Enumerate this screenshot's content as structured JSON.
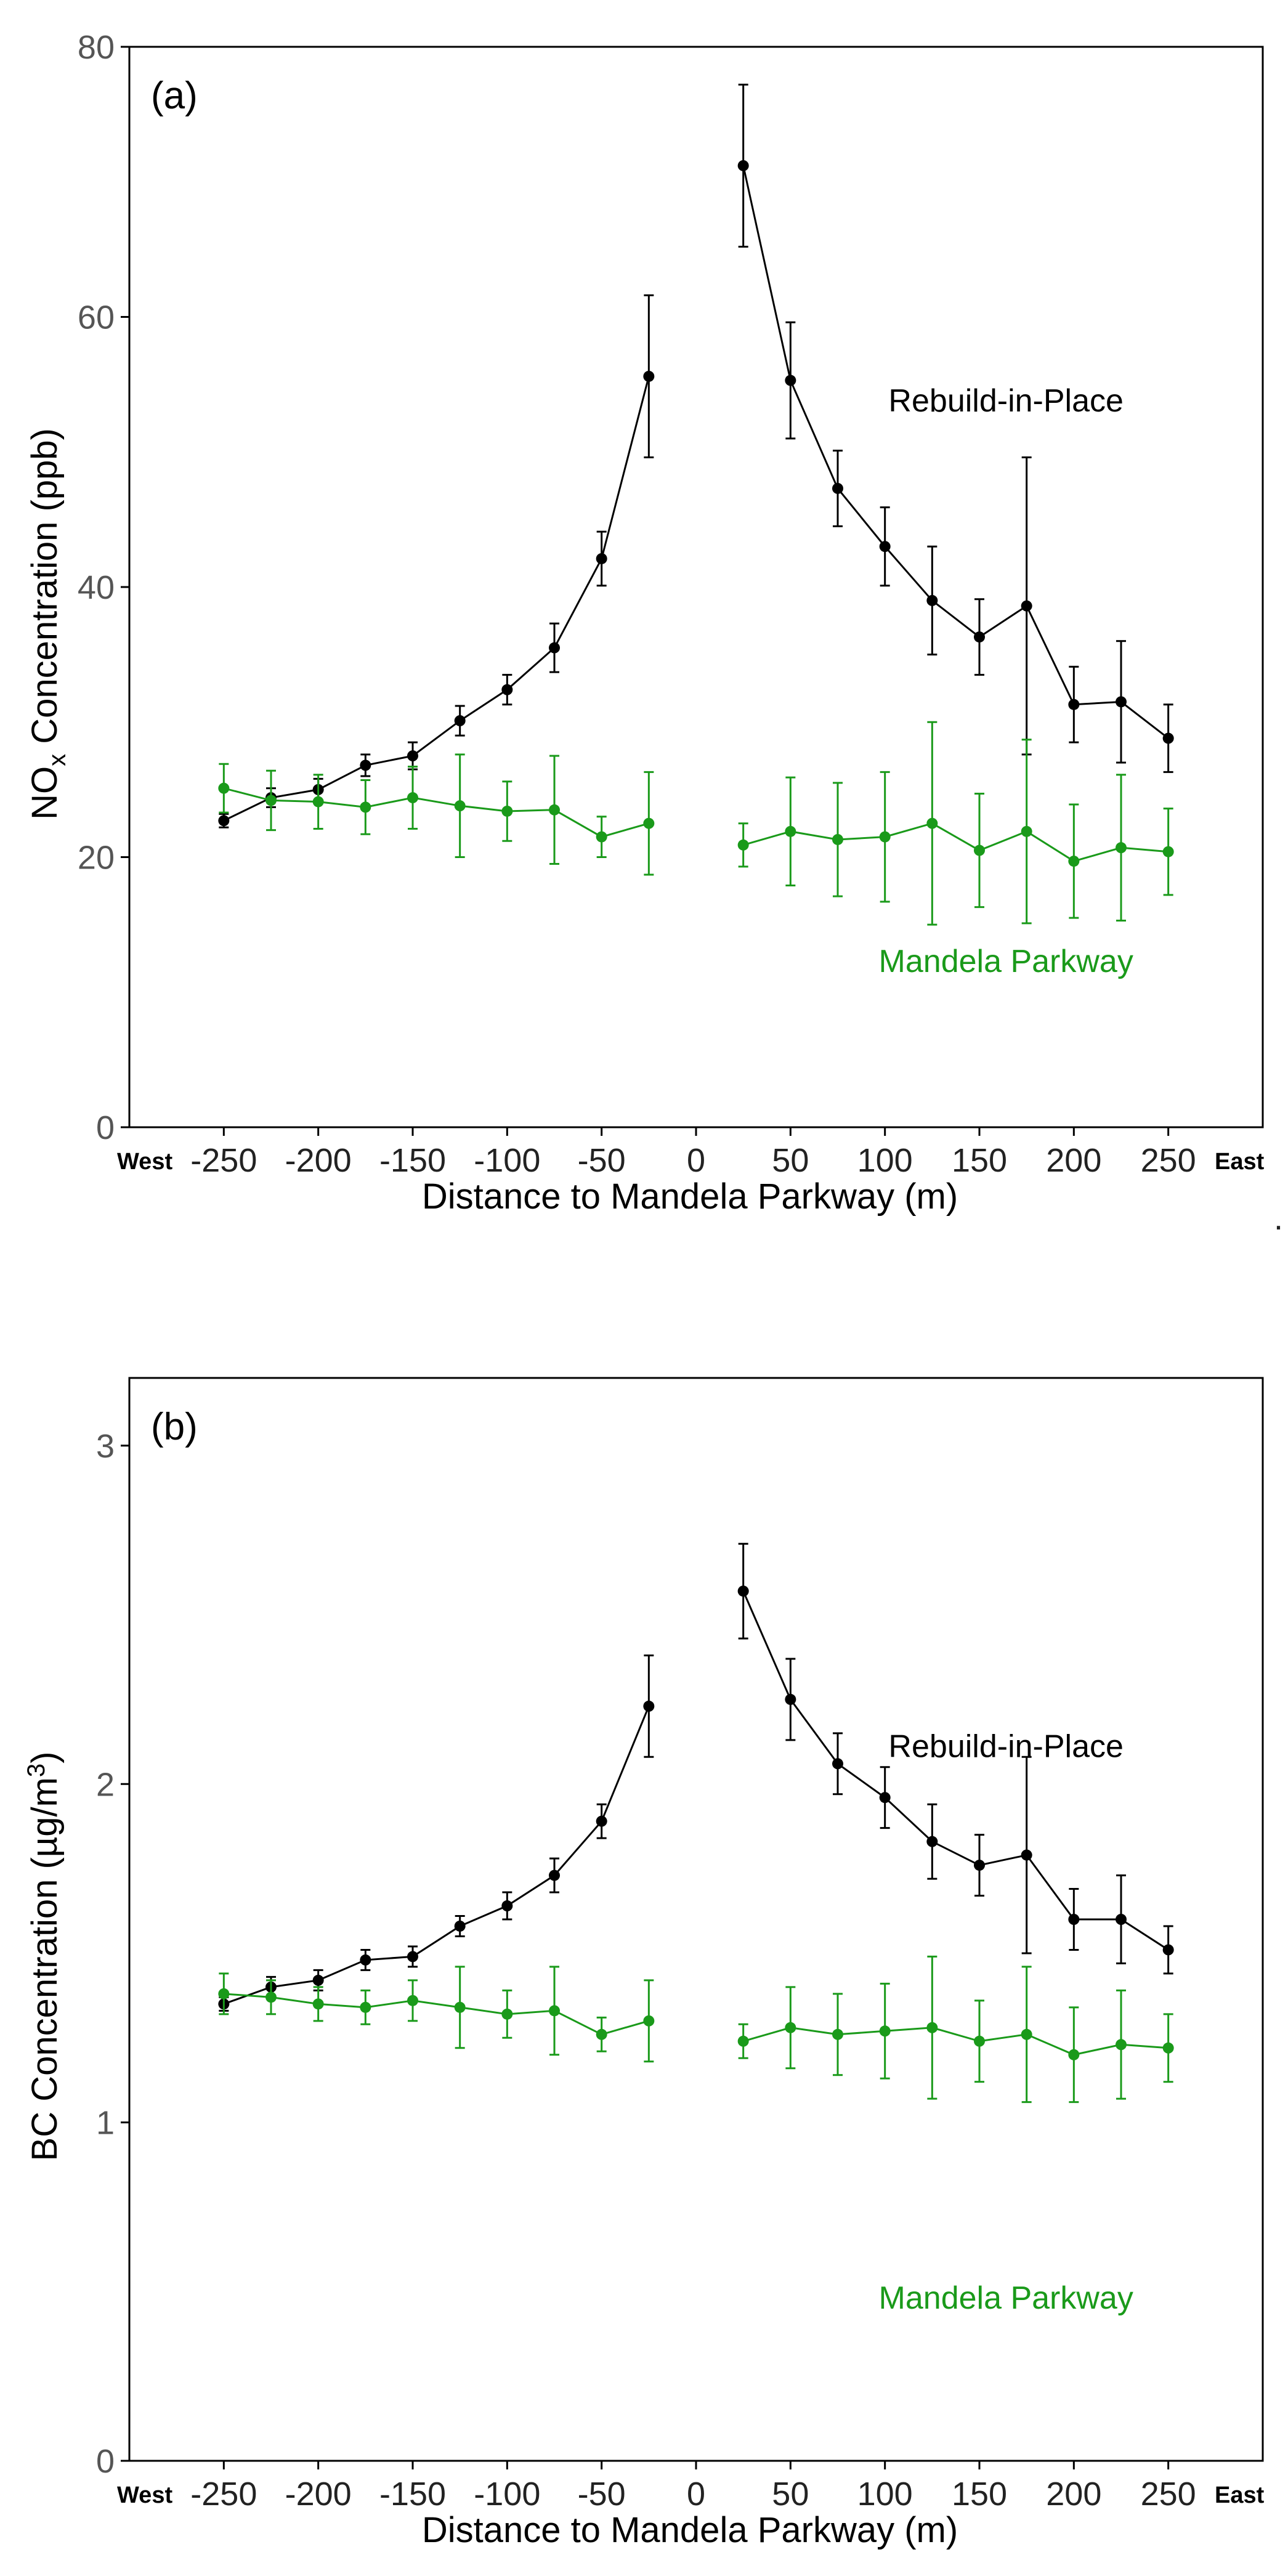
{
  "colors": {
    "rebuild": "#000000",
    "mandela": "#1a9a1a",
    "frame": "#000000"
  },
  "chart_data": [
    {
      "type": "line",
      "panel_label": "(a)",
      "xlabel": "Distance to Mandela Parkway (m)",
      "ylabel_main": "NO",
      "ylabel_sub": "x",
      "ylabel_rest": " Concentration (ppb)",
      "xlim": [
        -300,
        300
      ],
      "ylim": [
        0,
        80
      ],
      "xticks": [
        -250,
        -200,
        -150,
        -100,
        -50,
        0,
        50,
        100,
        150,
        200,
        250
      ],
      "xtick_labels": [
        "-250",
        "-200",
        "-150",
        "-100",
        "-50",
        "0",
        "50",
        "100",
        "150",
        "200",
        "250"
      ],
      "yticks": [
        0,
        20,
        40,
        60,
        80
      ],
      "ytick_labels": [
        "0",
        "20",
        "40",
        "60",
        "80"
      ],
      "west_label": "West",
      "east_label": "East",
      "series": [
        {
          "name": "Rebuild-in-Place",
          "color_key": "rebuild",
          "label_at": [
            -12,
            53
          ],
          "segments": [
            {
              "x": [
                -250,
                -225,
                -200,
                -175,
                -150,
                -125,
                -100,
                -75,
                -50,
                -25
              ],
              "y": [
                22.7,
                24.4,
                25.0,
                26.8,
                27.5,
                30.1,
                32.4,
                35.5,
                42.1,
                55.6
              ],
              "err": [
                0.5,
                0.7,
                0.8,
                0.8,
                1.0,
                1.1,
                1.1,
                1.8,
                2.0,
                6.0
              ]
            },
            {
              "x": [
                25,
                50,
                75,
                100,
                125,
                150,
                175,
                200,
                225,
                250
              ],
              "y": [
                71.2,
                55.3,
                47.3,
                43.0,
                39.0,
                36.3,
                38.6,
                31.3,
                31.5,
                28.8
              ],
              "err": [
                6.0,
                4.3,
                2.8,
                2.9,
                4.0,
                2.8,
                11.0,
                2.8,
                4.5,
                2.5
              ]
            }
          ]
        },
        {
          "name": "Mandela Parkway",
          "color_key": "mandela",
          "label_at": [
            -12,
            11.5
          ],
          "segments": [
            {
              "x": [
                -250,
                -225,
                -200,
                -175,
                -150,
                -125,
                -100,
                -75,
                -50,
                -25
              ],
              "y": [
                25.1,
                24.2,
                24.1,
                23.7,
                24.4,
                23.8,
                23.4,
                23.5,
                21.5,
                22.5
              ],
              "err": [
                1.8,
                2.2,
                2.0,
                2.0,
                2.3,
                3.8,
                2.2,
                4.0,
                1.5,
                3.8
              ]
            },
            {
              "x": [
                25,
                50,
                75,
                100,
                125,
                150,
                175,
                200,
                225,
                250
              ],
              "y": [
                20.9,
                21.9,
                21.3,
                21.5,
                22.5,
                20.5,
                21.9,
                19.7,
                20.7,
                20.4
              ],
              "err": [
                1.6,
                4.0,
                4.2,
                4.8,
                7.5,
                4.2,
                6.8,
                4.2,
                5.4,
                3.2
              ]
            }
          ]
        }
      ]
    },
    {
      "type": "line",
      "panel_label": "(b)",
      "xlabel": "Distance to Mandela Parkway (m)",
      "ylabel_main": "BC Concentration (µg/m",
      "ylabel_sup": "3",
      "ylabel_rest": ")",
      "xlim": [
        -300,
        300
      ],
      "ylim": [
        0,
        3.2
      ],
      "xticks": [
        -250,
        -200,
        -150,
        -100,
        -50,
        0,
        50,
        100,
        150,
        200,
        250
      ],
      "xtick_labels": [
        "-250",
        "-200",
        "-150",
        "-100",
        "-50",
        "0",
        "50",
        "100",
        "150",
        "200",
        "250"
      ],
      "yticks": [
        0,
        1,
        2,
        3
      ],
      "ytick_labels": [
        "0",
        "1",
        "2",
        "3"
      ],
      "west_label": "West",
      "east_label": "East",
      "series": [
        {
          "name": "Rebuild-in-Place",
          "color_key": "rebuild",
          "label_at": [
            -12,
            2.08
          ],
          "segments": [
            {
              "x": [
                -250,
                -225,
                -200,
                -175,
                -150,
                -125,
                -100,
                -75,
                -50,
                -25
              ],
              "y": [
                1.35,
                1.4,
                1.42,
                1.48,
                1.49,
                1.58,
                1.64,
                1.73,
                1.89,
                2.23
              ],
              "err": [
                0.02,
                0.03,
                0.03,
                0.03,
                0.03,
                0.03,
                0.04,
                0.05,
                0.05,
                0.15
              ]
            },
            {
              "x": [
                25,
                50,
                75,
                100,
                125,
                150,
                175,
                200,
                225,
                250
              ],
              "y": [
                2.57,
                2.25,
                2.06,
                1.96,
                1.83,
                1.76,
                1.79,
                1.6,
                1.6,
                1.51
              ],
              "err": [
                0.14,
                0.12,
                0.09,
                0.09,
                0.11,
                0.09,
                0.29,
                0.09,
                0.13,
                0.07
              ]
            }
          ]
        },
        {
          "name": "Mandela Parkway",
          "color_key": "mandela",
          "label_at": [
            -12,
            0.45
          ],
          "segments": [
            {
              "x": [
                -250,
                -225,
                -200,
                -175,
                -150,
                -125,
                -100,
                -75,
                -50,
                -25
              ],
              "y": [
                1.38,
                1.37,
                1.35,
                1.34,
                1.36,
                1.34,
                1.32,
                1.33,
                1.26,
                1.3
              ],
              "err": [
                0.06,
                0.05,
                0.05,
                0.05,
                0.06,
                0.12,
                0.07,
                0.13,
                0.05,
                0.12
              ]
            },
            {
              "x": [
                25,
                50,
                75,
                100,
                125,
                150,
                175,
                200,
                225,
                250
              ],
              "y": [
                1.24,
                1.28,
                1.26,
                1.27,
                1.28,
                1.24,
                1.26,
                1.2,
                1.23,
                1.22
              ],
              "err": [
                0.05,
                0.12,
                0.12,
                0.14,
                0.21,
                0.12,
                0.2,
                0.14,
                0.16,
                0.1
              ]
            }
          ]
        }
      ]
    }
  ]
}
